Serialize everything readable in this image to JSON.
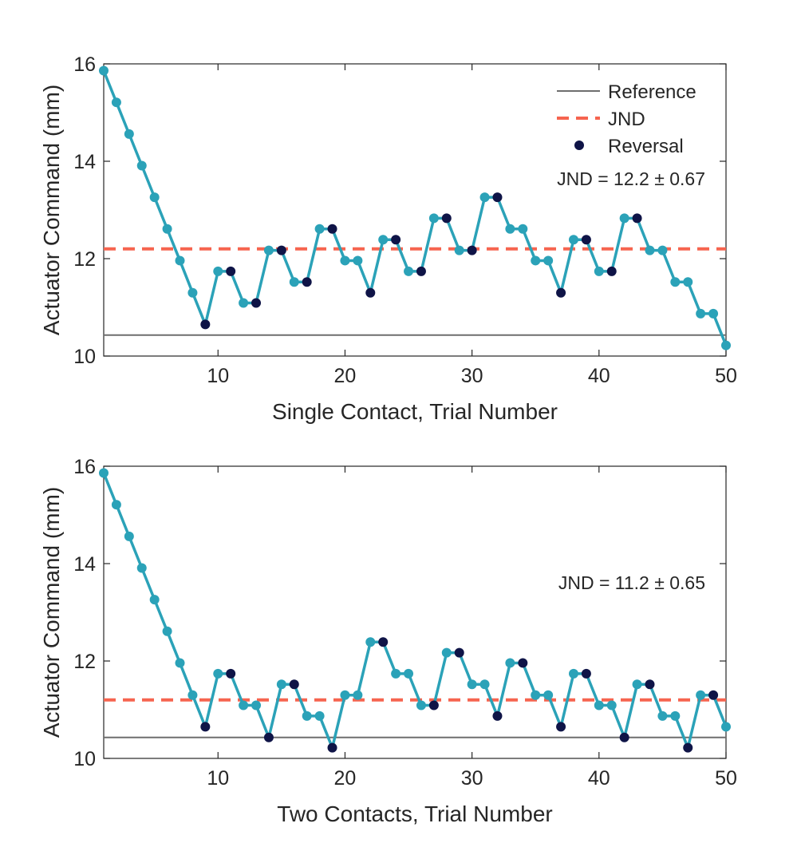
{
  "colors": {
    "series": "#2ba2b8",
    "reversal": "#0f1447",
    "reference": "#6e6e6e",
    "jnd": "#f6644f",
    "axis": "#262626"
  },
  "legend": {
    "reference_label": "Reference",
    "jnd_label": "JND",
    "reversal_label": "Reversal",
    "placement": "top-right"
  },
  "chart_data": [
    {
      "type": "line",
      "xlabel": "Single Contact, Trial Number",
      "ylabel": "Actuator Command (mm)",
      "xlim": [
        1,
        50
      ],
      "ylim": [
        10,
        16
      ],
      "xticks": [
        10,
        20,
        30,
        40,
        50
      ],
      "yticks": [
        10,
        12,
        14,
        16
      ],
      "reference": 10.43,
      "jnd_line": 12.2,
      "annotation": "JND = 12.2 ± 0.67",
      "x": [
        1,
        2,
        3,
        4,
        5,
        6,
        7,
        8,
        9,
        10,
        11,
        12,
        13,
        14,
        15,
        16,
        17,
        18,
        19,
        20,
        21,
        22,
        23,
        24,
        25,
        26,
        27,
        28,
        29,
        30,
        31,
        32,
        33,
        34,
        35,
        36,
        37,
        38,
        39,
        40,
        41,
        42,
        43,
        44,
        45,
        46,
        47,
        48,
        49,
        50
      ],
      "values": [
        15.86,
        15.21,
        14.56,
        13.91,
        13.26,
        12.61,
        11.96,
        11.3,
        10.65,
        11.74,
        11.74,
        11.09,
        11.09,
        12.17,
        12.17,
        11.52,
        11.52,
        12.61,
        12.61,
        11.96,
        11.96,
        11.3,
        12.39,
        12.39,
        11.74,
        11.74,
        12.83,
        12.83,
        12.17,
        12.17,
        13.26,
        13.26,
        12.61,
        12.61,
        11.96,
        11.96,
        11.3,
        12.39,
        12.39,
        11.74,
        11.74,
        12.83,
        12.83,
        12.17,
        12.17,
        11.52,
        11.52,
        10.87,
        10.87,
        10.22
      ],
      "reversal_trials": [
        9,
        11,
        13,
        15,
        17,
        19,
        22,
        24,
        26,
        28,
        30,
        32,
        37,
        39,
        41,
        43
      ]
    },
    {
      "type": "line",
      "xlabel": "Two Contacts, Trial Number",
      "ylabel": "Actuator Command (mm)",
      "xlim": [
        1,
        50
      ],
      "ylim": [
        10,
        16
      ],
      "xticks": [
        10,
        20,
        30,
        40,
        50
      ],
      "yticks": [
        10,
        12,
        14,
        16
      ],
      "reference": 10.43,
      "jnd_line": 11.2,
      "annotation": "JND = 11.2 ± 0.65",
      "x": [
        1,
        2,
        3,
        4,
        5,
        6,
        7,
        8,
        9,
        10,
        11,
        12,
        13,
        14,
        15,
        16,
        17,
        18,
        19,
        20,
        21,
        22,
        23,
        24,
        25,
        26,
        27,
        28,
        29,
        30,
        31,
        32,
        33,
        34,
        35,
        36,
        37,
        38,
        39,
        40,
        41,
        42,
        43,
        44,
        45,
        46,
        47,
        48,
        49,
        50
      ],
      "values": [
        15.86,
        15.21,
        14.56,
        13.91,
        13.26,
        12.61,
        11.96,
        11.3,
        10.65,
        11.74,
        11.74,
        11.09,
        11.09,
        10.43,
        11.52,
        11.52,
        10.87,
        10.87,
        10.22,
        11.3,
        11.3,
        12.39,
        12.39,
        11.74,
        11.74,
        11.09,
        11.09,
        12.17,
        12.17,
        11.52,
        11.52,
        10.87,
        11.96,
        11.96,
        11.3,
        11.3,
        10.65,
        11.74,
        11.74,
        11.09,
        11.09,
        10.43,
        11.52,
        11.52,
        10.87,
        10.87,
        10.22,
        11.3,
        11.3,
        10.65
      ],
      "reversal_trials": [
        9,
        11,
        14,
        16,
        19,
        23,
        27,
        29,
        32,
        34,
        37,
        39,
        42,
        44,
        47,
        49
      ]
    }
  ]
}
